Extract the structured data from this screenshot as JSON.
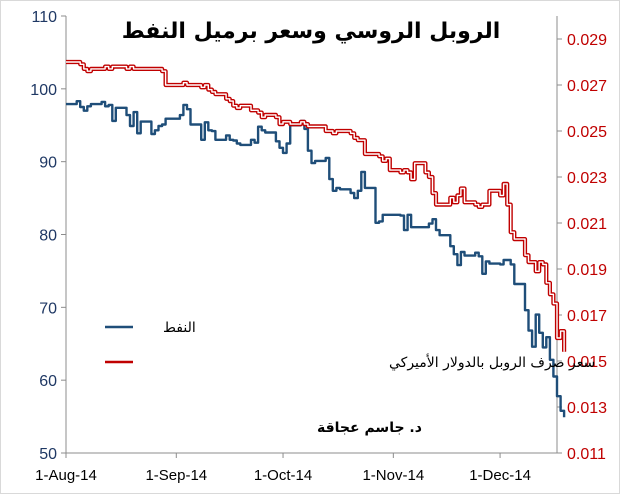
{
  "chart_data": {
    "type": "line",
    "title": "الروبل الروسي وسعر برميل النفط",
    "credit": "د. جاسم عجاقة",
    "x_labels": [
      "1-Aug-14",
      "1-Sep-14",
      "1-Oct-14",
      "1-Nov-14",
      "1-Dec-14"
    ],
    "x_label_dates": [
      "2014-08-01",
      "2014-09-01",
      "2014-10-01",
      "2014-11-01",
      "2014-12-01"
    ],
    "xlim": [
      "2014-08-01",
      "2014-12-17"
    ],
    "y_left": {
      "lim": [
        50,
        110
      ],
      "ticks": [
        50,
        60,
        70,
        80,
        90,
        100,
        110
      ],
      "color": "#1f4e79"
    },
    "y_right": {
      "lim": [
        0.011,
        0.03
      ],
      "ticks": [
        "0.011",
        "0.013",
        "0.015",
        "0.017",
        "0.019",
        "0.021",
        "0.023",
        "0.025",
        "0.027",
        "0.029"
      ],
      "color": "#c00000"
    },
    "legend": {
      "position": "center-left"
    },
    "grid": false,
    "series": [
      {
        "name": "النفط",
        "axis": "left",
        "color": "#1f4e79",
        "points": [
          [
            "2014-08-01",
            97.9
          ],
          [
            "2014-08-04",
            98.3
          ],
          [
            "2014-08-05",
            97.5
          ],
          [
            "2014-08-06",
            97.0
          ],
          [
            "2014-08-07",
            97.6
          ],
          [
            "2014-08-08",
            97.9
          ],
          [
            "2014-08-11",
            98.2
          ],
          [
            "2014-08-12",
            97.6
          ],
          [
            "2014-08-13",
            97.8
          ],
          [
            "2014-08-14",
            95.6
          ],
          [
            "2014-08-15",
            97.4
          ],
          [
            "2014-08-18",
            96.4
          ],
          [
            "2014-08-19",
            94.9
          ],
          [
            "2014-08-20",
            96.8
          ],
          [
            "2014-08-21",
            93.9
          ],
          [
            "2014-08-22",
            95.5
          ],
          [
            "2014-08-25",
            93.8
          ],
          [
            "2014-08-26",
            94.3
          ],
          [
            "2014-08-27",
            94.9
          ],
          [
            "2014-08-28",
            95.1
          ],
          [
            "2014-08-29",
            95.9
          ],
          [
            "2014-09-02",
            96.4
          ],
          [
            "2014-09-03",
            97.8
          ],
          [
            "2014-09-04",
            97.2
          ],
          [
            "2014-09-05",
            95.1
          ],
          [
            "2014-09-08",
            93.0
          ],
          [
            "2014-09-09",
            95.4
          ],
          [
            "2014-09-10",
            94.3
          ],
          [
            "2014-09-11",
            94.2
          ],
          [
            "2014-09-12",
            93.0
          ],
          [
            "2014-09-15",
            93.6
          ],
          [
            "2014-09-16",
            93.0
          ],
          [
            "2014-09-17",
            92.9
          ],
          [
            "2014-09-18",
            92.5
          ],
          [
            "2014-09-19",
            92.3
          ],
          [
            "2014-09-22",
            93.0
          ],
          [
            "2014-09-23",
            92.6
          ],
          [
            "2014-09-24",
            94.8
          ],
          [
            "2014-09-25",
            94.3
          ],
          [
            "2014-09-26",
            94.0
          ],
          [
            "2014-09-29",
            92.8
          ],
          [
            "2014-09-30",
            91.9
          ],
          [
            "2014-10-01",
            91.2
          ],
          [
            "2014-10-02",
            92.5
          ],
          [
            "2014-10-03",
            95.0
          ],
          [
            "2014-10-06",
            95.6
          ],
          [
            "2014-10-07",
            94.5
          ],
          [
            "2014-10-08",
            91.5
          ],
          [
            "2014-10-09",
            89.8
          ],
          [
            "2014-10-10",
            90.1
          ],
          [
            "2014-10-13",
            90.5
          ],
          [
            "2014-10-14",
            87.6
          ],
          [
            "2014-10-15",
            86.0
          ],
          [
            "2014-10-16",
            86.4
          ],
          [
            "2014-10-17",
            86.2
          ],
          [
            "2014-10-20",
            85.7
          ],
          [
            "2014-10-21",
            85.0
          ],
          [
            "2014-10-22",
            86.0
          ],
          [
            "2014-10-23",
            88.6
          ],
          [
            "2014-10-24",
            86.4
          ],
          [
            "2014-10-27",
            81.6
          ],
          [
            "2014-10-28",
            81.8
          ],
          [
            "2014-10-29",
            82.7
          ],
          [
            "2014-10-30",
            82.7
          ],
          [
            "2014-10-31",
            82.7
          ],
          [
            "2014-11-03",
            82.6
          ],
          [
            "2014-11-04",
            80.6
          ],
          [
            "2014-11-05",
            82.7
          ],
          [
            "2014-11-06",
            81.0
          ],
          [
            "2014-11-07",
            81.0
          ],
          [
            "2014-11-10",
            81.0
          ],
          [
            "2014-11-11",
            81.5
          ],
          [
            "2014-11-12",
            82.1
          ],
          [
            "2014-11-13",
            80.6
          ],
          [
            "2014-11-14",
            79.9
          ],
          [
            "2014-11-17",
            78.4
          ],
          [
            "2014-11-18",
            77.3
          ],
          [
            "2014-11-19",
            75.8
          ],
          [
            "2014-11-20",
            77.6
          ],
          [
            "2014-11-21",
            77.1
          ],
          [
            "2014-11-24",
            77.5
          ],
          [
            "2014-11-25",
            77.0
          ],
          [
            "2014-11-26",
            74.6
          ],
          [
            "2014-11-27",
            76.3
          ],
          [
            "2014-11-28",
            76.0
          ],
          [
            "2014-12-01",
            75.9
          ],
          [
            "2014-12-02",
            76.5
          ],
          [
            "2014-12-03",
            76.5
          ],
          [
            "2014-12-04",
            75.9
          ],
          [
            "2014-12-05",
            73.2
          ],
          [
            "2014-12-08",
            69.6
          ],
          [
            "2014-12-09",
            66.8
          ],
          [
            "2014-12-10",
            64.6
          ],
          [
            "2014-12-11",
            69.0
          ],
          [
            "2014-12-12",
            66.5
          ],
          [
            "2014-12-13",
            64.5
          ],
          [
            "2014-12-14",
            65.9
          ],
          [
            "2014-12-15",
            62.8
          ],
          [
            "2014-12-16",
            60.5
          ],
          [
            "2014-12-17",
            57.8
          ],
          [
            "2014-12-18",
            55.8
          ],
          [
            "2014-12-19",
            54.9
          ]
        ]
      },
      {
        "name": "سعر صرف الروبل بالدولار الأميركي",
        "axis": "right",
        "color": "#c00000",
        "points": [
          [
            "2014-08-01",
            0.028
          ],
          [
            "2014-08-04",
            0.028
          ],
          [
            "2014-08-05",
            0.0279
          ],
          [
            "2014-08-06",
            0.0277
          ],
          [
            "2014-08-07",
            0.0276
          ],
          [
            "2014-08-08",
            0.0277
          ],
          [
            "2014-08-11",
            0.0277
          ],
          [
            "2014-08-12",
            0.0278
          ],
          [
            "2014-08-13",
            0.0277
          ],
          [
            "2014-08-14",
            0.0278
          ],
          [
            "2014-08-15",
            0.0278
          ],
          [
            "2014-08-18",
            0.0277
          ],
          [
            "2014-08-19",
            0.0278
          ],
          [
            "2014-08-20",
            0.0277
          ],
          [
            "2014-08-21",
            0.0277
          ],
          [
            "2014-08-22",
            0.0277
          ],
          [
            "2014-08-25",
            0.0277
          ],
          [
            "2014-08-26",
            0.0277
          ],
          [
            "2014-08-27",
            0.0277
          ],
          [
            "2014-08-28",
            0.0276
          ],
          [
            "2014-08-29",
            0.027
          ],
          [
            "2014-09-02",
            0.027
          ],
          [
            "2014-09-03",
            0.0271
          ],
          [
            "2014-09-04",
            0.027
          ],
          [
            "2014-09-05",
            0.027
          ],
          [
            "2014-09-08",
            0.0269
          ],
          [
            "2014-09-09",
            0.027
          ],
          [
            "2014-09-10",
            0.0268
          ],
          [
            "2014-09-11",
            0.0267
          ],
          [
            "2014-09-12",
            0.0266
          ],
          [
            "2014-09-15",
            0.0264
          ],
          [
            "2014-09-16",
            0.0263
          ],
          [
            "2014-09-17",
            0.0261
          ],
          [
            "2014-09-18",
            0.026
          ],
          [
            "2014-09-19",
            0.0261
          ],
          [
            "2014-09-22",
            0.0259
          ],
          [
            "2014-09-23",
            0.0259
          ],
          [
            "2014-09-24",
            0.0258
          ],
          [
            "2014-09-25",
            0.0256
          ],
          [
            "2014-09-26",
            0.0257
          ],
          [
            "2014-09-29",
            0.0256
          ],
          [
            "2014-09-30",
            0.0253
          ],
          [
            "2014-10-01",
            0.0254
          ],
          [
            "2014-10-02",
            0.0254
          ],
          [
            "2014-10-03",
            0.0253
          ],
          [
            "2014-10-06",
            0.0254
          ],
          [
            "2014-10-07",
            0.0253
          ],
          [
            "2014-10-08",
            0.0252
          ],
          [
            "2014-10-09",
            0.0252
          ],
          [
            "2014-10-10",
            0.0252
          ],
          [
            "2014-10-13",
            0.025
          ],
          [
            "2014-10-14",
            0.025
          ],
          [
            "2014-10-15",
            0.0249
          ],
          [
            "2014-10-16",
            0.025
          ],
          [
            "2014-10-17",
            0.025
          ],
          [
            "2014-10-20",
            0.0249
          ],
          [
            "2014-10-21",
            0.0247
          ],
          [
            "2014-10-22",
            0.0246
          ],
          [
            "2014-10-23",
            0.0246
          ],
          [
            "2014-10-24",
            0.024
          ],
          [
            "2014-10-27",
            0.024
          ],
          [
            "2014-10-28",
            0.0239
          ],
          [
            "2014-10-29",
            0.0237
          ],
          [
            "2014-10-30",
            0.0238
          ],
          [
            "2014-10-31",
            0.0233
          ],
          [
            "2014-11-03",
            0.0232
          ],
          [
            "2014-11-04",
            0.0233
          ],
          [
            "2014-11-05",
            0.0232
          ],
          [
            "2014-11-06",
            0.0229
          ],
          [
            "2014-11-07",
            0.0236
          ],
          [
            "2014-11-10",
            0.0232
          ],
          [
            "2014-11-11",
            0.023
          ],
          [
            "2014-11-12",
            0.0223
          ],
          [
            "2014-11-13",
            0.0218
          ],
          [
            "2014-11-14",
            0.0218
          ],
          [
            "2014-11-17",
            0.0221
          ],
          [
            "2014-11-18",
            0.0219
          ],
          [
            "2014-11-19",
            0.0222
          ],
          [
            "2014-11-20",
            0.0225
          ],
          [
            "2014-11-21",
            0.0219
          ],
          [
            "2014-11-24",
            0.0218
          ],
          [
            "2014-11-25",
            0.0217
          ],
          [
            "2014-11-26",
            0.0218
          ],
          [
            "2014-11-27",
            0.0218
          ],
          [
            "2014-11-28",
            0.0224
          ],
          [
            "2014-12-01",
            0.0222
          ],
          [
            "2014-12-02",
            0.0227
          ],
          [
            "2014-12-03",
            0.0218
          ],
          [
            "2014-12-04",
            0.0206
          ],
          [
            "2014-12-05",
            0.0203
          ],
          [
            "2014-12-08",
            0.0196
          ],
          [
            "2014-12-09",
            0.0193
          ],
          [
            "2014-12-10",
            0.0193
          ],
          [
            "2014-12-11",
            0.0189
          ],
          [
            "2014-12-12",
            0.0193
          ],
          [
            "2014-12-13",
            0.0192
          ],
          [
            "2014-12-14",
            0.0184
          ],
          [
            "2014-12-15",
            0.0179
          ],
          [
            "2014-12-16",
            0.0175
          ],
          [
            "2014-12-17",
            0.016
          ],
          [
            "2014-12-18",
            0.0163
          ],
          [
            "2014-12-19",
            0.0154
          ]
        ]
      }
    ]
  }
}
